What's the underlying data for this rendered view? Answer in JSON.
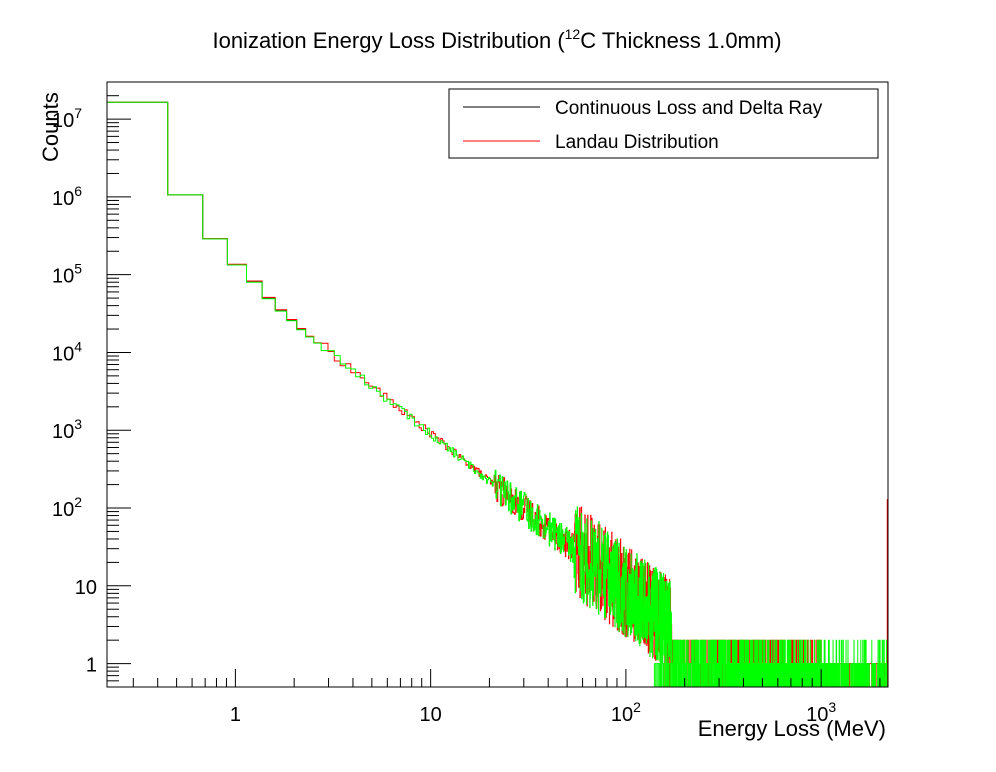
{
  "chart_data": {
    "type": "histogram-step",
    "title": {
      "prefix": "Ionization Energy Loss Distribution (",
      "superscript": "12",
      "suffix": "C Thickness 1.0mm)"
    },
    "xlabel": "Energy Loss (MeV)",
    "ylabel": "Counts",
    "x_scale": "log",
    "y_scale": "log",
    "xlim": [
      0.22,
      2200
    ],
    "ylim": [
      0.5,
      30000000
    ],
    "grid": false,
    "legend_position": "top-right",
    "x_ticks": [
      {
        "value": 1,
        "base": "1",
        "exp": ""
      },
      {
        "value": 10,
        "base": "10",
        "exp": ""
      },
      {
        "value": 100,
        "base": "10",
        "exp": "2"
      },
      {
        "value": 1000,
        "base": "10",
        "exp": "3"
      }
    ],
    "y_ticks": [
      {
        "value": 1,
        "base": "1",
        "exp": ""
      },
      {
        "value": 10,
        "base": "10",
        "exp": ""
      },
      {
        "value": 100,
        "base": "10",
        "exp": "2"
      },
      {
        "value": 1000,
        "base": "10",
        "exp": "3"
      },
      {
        "value": 10000,
        "base": "10",
        "exp": "4"
      },
      {
        "value": 100000,
        "base": "10",
        "exp": "5"
      },
      {
        "value": 1000000,
        "base": "10",
        "exp": "6"
      },
      {
        "value": 10000000,
        "base": "10",
        "exp": "7"
      }
    ],
    "series": [
      {
        "name": "Continuous Loss and Delta Ray",
        "color": "#000000",
        "edges": [
          0.22,
          0.45,
          0.68,
          0.91,
          1.14,
          1.37,
          1.6,
          1.83,
          2.06,
          2.29,
          2.52
        ],
        "counts": [
          16500000,
          1060000,
          290000,
          135000,
          82000,
          50000,
          35000,
          26000,
          20000,
          16000
        ]
      },
      {
        "name": "Landau Distribution",
        "color": "#ff0000",
        "edges": [
          0.22,
          0.45,
          0.68,
          0.91,
          1.14,
          1.37,
          1.6,
          1.83,
          2.06,
          2.29,
          2.52
        ],
        "counts": [
          16500000,
          1060000,
          292000,
          136000,
          83000,
          51000,
          35500,
          26500,
          20300,
          16200
        ],
        "tail": {
          "x_start": 2.52,
          "x_end": 1080,
          "y_start": 14000,
          "slope": -2.0,
          "noise": 0.45
        },
        "flat_region": {
          "x_start": 1080,
          "x_end": 2200,
          "level": 1
        },
        "end_spike": {
          "x": 2200,
          "y": 130
        }
      },
      {
        "name": "",
        "color": "#00ff00",
        "edges": [
          0.22,
          0.45,
          0.68,
          0.91,
          1.14,
          1.37,
          1.6,
          1.83,
          2.06,
          2.29,
          2.52
        ],
        "counts": [
          16500000,
          1060000,
          288000,
          133000,
          80000,
          49000,
          34000,
          25500,
          19600,
          15800
        ],
        "tail": {
          "x_start": 2.52,
          "x_end": 2200,
          "y_start": 13800,
          "slope": -2.0,
          "noise": 0.5
        },
        "flat_region": {
          "x_start": 140,
          "x_end": 1080,
          "level": 1
        }
      }
    ]
  }
}
